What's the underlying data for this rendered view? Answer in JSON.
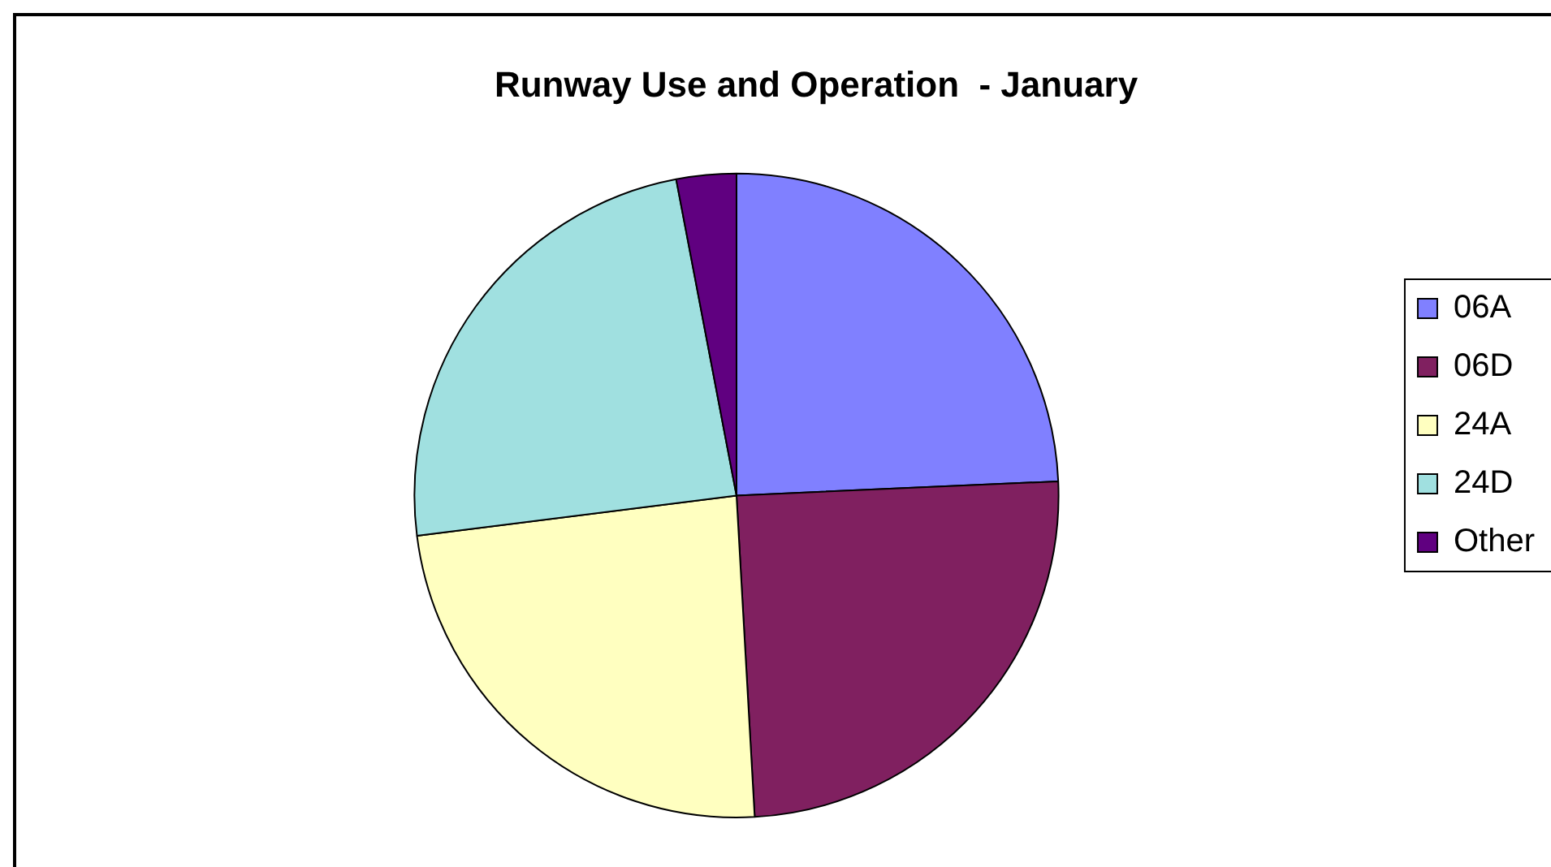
{
  "chart_data": {
    "type": "pie",
    "title": "Runway Use and Operation  - January",
    "categories": [
      "06A",
      "06D",
      "24A",
      "24D",
      "Other"
    ],
    "values": [
      24.3,
      24.8,
      23.9,
      24.0,
      3.0
    ],
    "colors": [
      "#8080ff",
      "#802060",
      "#ffffc0",
      "#a0e0e0",
      "#600080"
    ],
    "legend": "right"
  }
}
